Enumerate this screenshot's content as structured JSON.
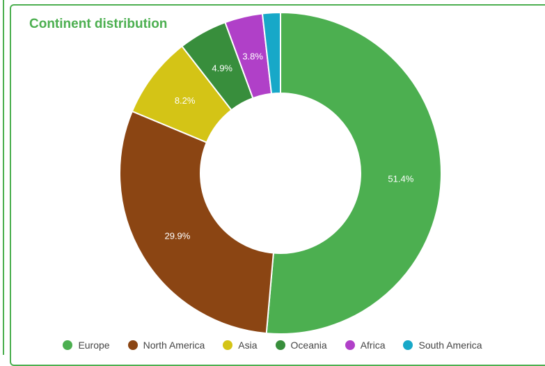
{
  "chart_data": {
    "type": "pie",
    "title": "Continent distribution",
    "donut": true,
    "slices": [
      {
        "label": "Europe",
        "value": 51.4,
        "display": "51.4%",
        "color": "#4caf50"
      },
      {
        "label": "North America",
        "value": 29.9,
        "display": "29.9%",
        "color": "#8b4513"
      },
      {
        "label": "Asia",
        "value": 8.2,
        "display": "8.2%",
        "color": "#d4c416"
      },
      {
        "label": "Oceania",
        "value": 4.9,
        "display": "4.9%",
        "color": "#388e3c"
      },
      {
        "label": "Africa",
        "value": 3.8,
        "display": "3.8%",
        "color": "#b040c8"
      },
      {
        "label": "South America",
        "value": 1.8,
        "display": "",
        "color": "#17a8c8"
      }
    ],
    "legend_position": "bottom"
  }
}
